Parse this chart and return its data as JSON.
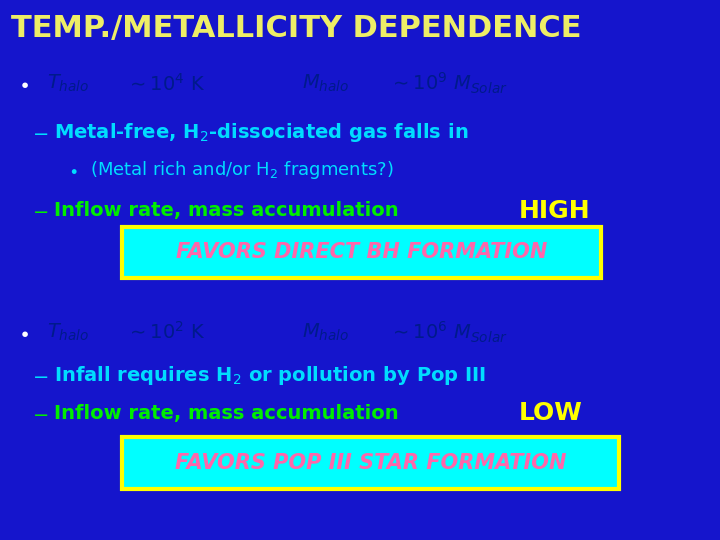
{
  "bg_color": "#1515CC",
  "title": "TEMP./METALLICITY DEPENDENCE",
  "title_color": "#EEEE66",
  "title_fontsize": 22,
  "bullet_formula_color": "#001A8C",
  "cyan_color": "#00DDFF",
  "green_color": "#00EE00",
  "yellow_color": "#FFFF00",
  "box1_text": "FAVORS DIRECT BH FORMATION",
  "box1_bg": "#00FFFF",
  "box1_border": "#FFFF00",
  "box1_text_color": "#FF66AA",
  "box2_text": "FAVORS POP III STAR FORMATION",
  "box2_bg": "#00FFFF",
  "box2_border": "#FFFF00",
  "box2_text_color": "#FF66AA"
}
